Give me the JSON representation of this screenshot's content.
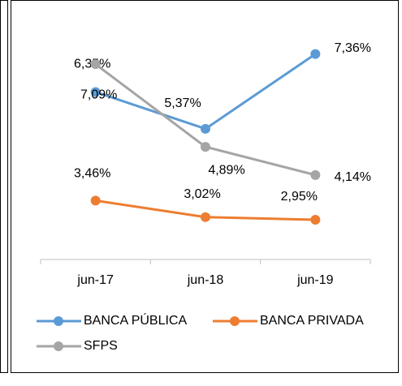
{
  "chart_data": {
    "type": "line",
    "categories": [
      "jun-17",
      "jun-18",
      "jun-19"
    ],
    "series": [
      {
        "name": "BANCA PÚBLICA",
        "color": "#5b9bd5",
        "values": [
          6.35,
          5.37,
          7.36
        ],
        "value_labels": [
          "6,35%",
          "5,37%",
          "7,36%"
        ]
      },
      {
        "name": "BANCA PRIVADA",
        "color": "#ed7d31",
        "values": [
          3.46,
          3.02,
          2.95
        ],
        "value_labels": [
          "3,46%",
          "3,02%",
          "2,95%"
        ]
      },
      {
        "name": "SFPS",
        "color": "#a5a5a5",
        "values": [
          7.09,
          4.89,
          4.14
        ],
        "value_labels": [
          "7,09%",
          "4,89%",
          "4,14%"
        ]
      }
    ],
    "ylim": [
      2,
      8
    ]
  }
}
